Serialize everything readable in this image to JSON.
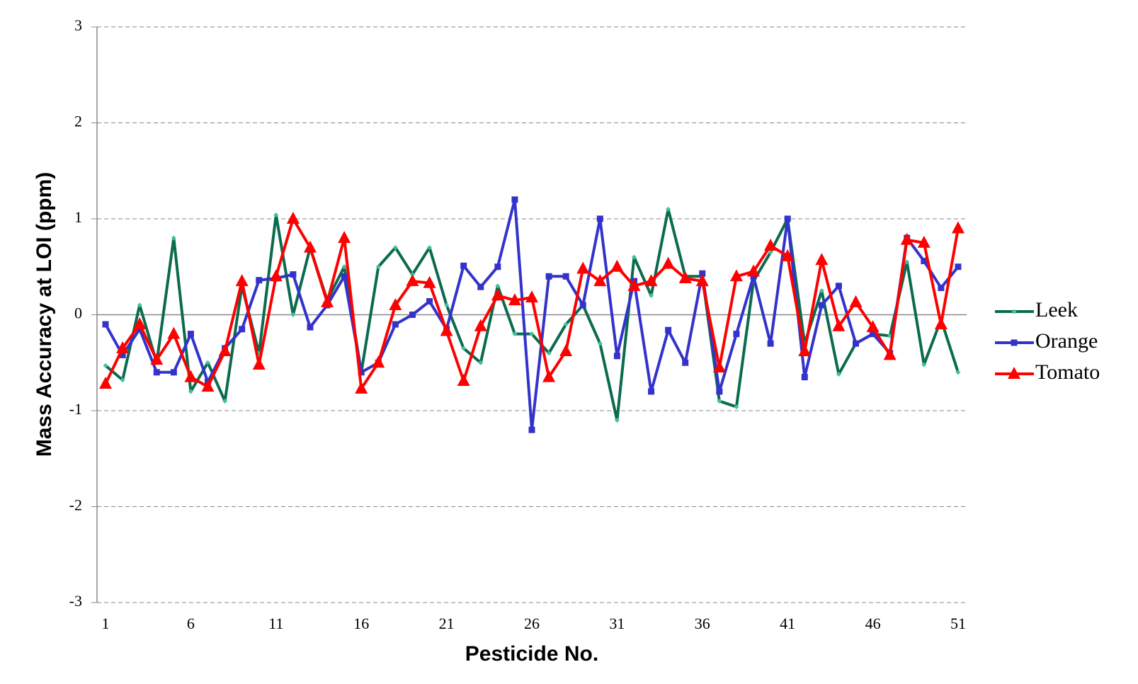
{
  "chart_data": {
    "type": "line",
    "x_label": "Pesticide No.",
    "y_label": "Mass Accuracy at LOI (ppm)",
    "x": [
      1,
      2,
      3,
      4,
      5,
      6,
      7,
      8,
      9,
      10,
      11,
      12,
      13,
      14,
      15,
      16,
      17,
      18,
      19,
      20,
      21,
      22,
      23,
      24,
      25,
      26,
      27,
      28,
      29,
      30,
      31,
      32,
      33,
      34,
      35,
      36,
      37,
      38,
      39,
      40,
      41,
      42,
      43,
      44,
      45,
      46,
      47,
      48,
      49,
      50,
      51
    ],
    "xlim": [
      0.5,
      51.5
    ],
    "xticks": [
      1,
      6,
      11,
      16,
      21,
      26,
      31,
      36,
      41,
      46,
      51
    ],
    "ylim": [
      -3,
      3
    ],
    "yticks": [
      3,
      2,
      1,
      0,
      -1,
      -2,
      -3
    ],
    "grid": true,
    "legend": "right",
    "series": [
      {
        "name": "Leek",
        "color": "#0b6b4f",
        "marker": "diamond",
        "values": [
          -0.53,
          -0.68,
          0.1,
          -0.5,
          0.8,
          -0.8,
          -0.5,
          -0.9,
          0.3,
          -0.4,
          1.04,
          0.0,
          0.7,
          0.15,
          0.5,
          -0.6,
          0.5,
          0.7,
          0.42,
          0.7,
          0.1,
          -0.35,
          -0.5,
          0.3,
          -0.2,
          -0.2,
          -0.4,
          -0.1,
          0.1,
          -0.3,
          -1.1,
          0.6,
          0.2,
          1.1,
          0.4,
          0.4,
          -0.9,
          -0.96,
          0.35,
          0.65,
          1.0,
          -0.3,
          0.25,
          -0.62,
          -0.3,
          -0.2,
          -0.22,
          0.55,
          -0.52,
          -0.05,
          -0.6
        ]
      },
      {
        "name": "Orange",
        "color": "#3333cc",
        "marker": "square",
        "values": [
          -0.1,
          -0.42,
          -0.15,
          -0.6,
          -0.6,
          -0.2,
          -0.7,
          -0.35,
          -0.15,
          0.36,
          0.38,
          0.42,
          -0.13,
          0.1,
          0.4,
          -0.6,
          -0.5,
          -0.1,
          0.0,
          0.14,
          -0.15,
          0.51,
          0.29,
          0.5,
          1.2,
          -1.2,
          0.4,
          0.4,
          0.1,
          1.0,
          -0.43,
          0.35,
          -0.8,
          -0.16,
          -0.5,
          0.43,
          -0.8,
          -0.2,
          0.4,
          -0.3,
          1.0,
          -0.65,
          0.1,
          0.3,
          -0.3,
          -0.2,
          -0.4,
          0.8,
          0.56,
          0.28,
          0.5
        ]
      },
      {
        "name": "Tomato",
        "color": "#ff0000",
        "marker": "triangle",
        "values": [
          -0.72,
          -0.35,
          -0.1,
          -0.47,
          -0.2,
          -0.65,
          -0.75,
          -0.38,
          0.35,
          -0.52,
          0.4,
          1.0,
          0.7,
          0.13,
          0.8,
          -0.77,
          -0.5,
          0.1,
          0.35,
          0.33,
          -0.17,
          -0.69,
          -0.12,
          0.2,
          0.15,
          0.18,
          -0.65,
          -0.38,
          0.48,
          0.35,
          0.5,
          0.3,
          0.35,
          0.53,
          0.38,
          0.35,
          -0.55,
          0.4,
          0.45,
          0.72,
          0.61,
          -0.38,
          0.57,
          -0.12,
          0.13,
          -0.13,
          -0.42,
          0.78,
          0.75,
          -0.1,
          0.9
        ]
      }
    ]
  }
}
